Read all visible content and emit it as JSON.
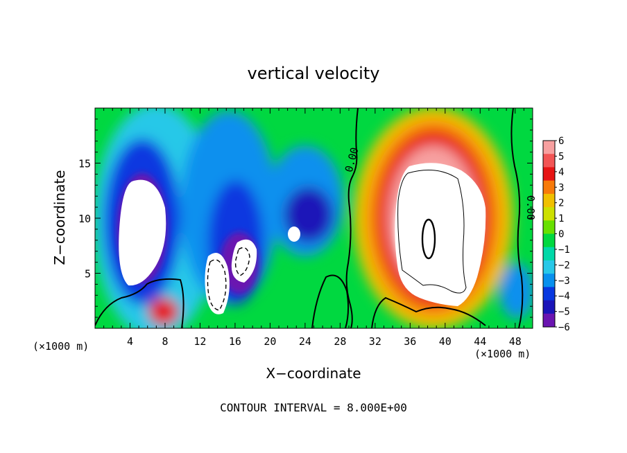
{
  "chart_data": {
    "type": "heatmap",
    "title": "vertical velocity",
    "xlabel": "X−coordinate",
    "ylabel": "Z−coordinate",
    "x_unit_left": "(×1000 m)",
    "x_unit_right": "(×1000 m)",
    "xlim": [
      0,
      50
    ],
    "ylim": [
      0,
      20
    ],
    "x_ticks": [
      4,
      8,
      12,
      16,
      20,
      24,
      28,
      32,
      36,
      40,
      44,
      48
    ],
    "y_ticks": [
      5,
      10,
      15
    ],
    "colorbar": {
      "levels": [
        6,
        5,
        4,
        3,
        2,
        1,
        0,
        -1,
        -2,
        -3,
        -4,
        -5,
        -6
      ],
      "labels": [
        "6",
        "5",
        "4",
        "3",
        "2",
        "1",
        "0",
        "−1",
        "−2",
        "−3",
        "−4",
        "−5",
        "−6"
      ],
      "colors": [
        "#f7a0a0",
        "#f25555",
        "#e61414",
        "#f77a0a",
        "#f0c000",
        "#cde000",
        "#68e000",
        "#00d840",
        "#00d8a8",
        "#28c8e8",
        "#0890ee",
        "#0838e0",
        "#1a14b8",
        "#6a14b0"
      ]
    },
    "contour_labels": [
      "0.00",
      "0.00"
    ],
    "annotation": "CONTOUR INTERVAL = 8.000E+00"
  }
}
